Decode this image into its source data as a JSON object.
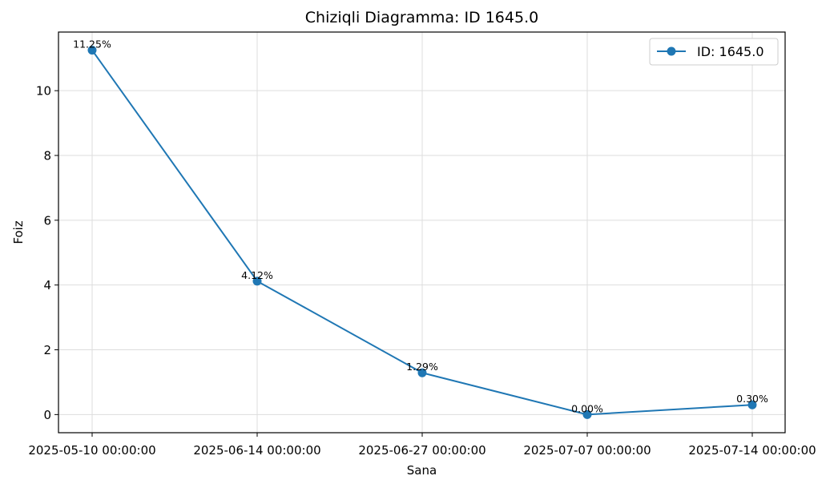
{
  "chart_data": {
    "type": "line",
    "title": "Chiziqli Diagramma: ID 1645.0",
    "xlabel": "Sana",
    "ylabel": "Foiz",
    "categories": [
      "2025-05-10 00:00:00",
      "2025-06-14 00:00:00",
      "2025-06-27 00:00:00",
      "2025-07-07 00:00:00",
      "2025-07-14 00:00:00"
    ],
    "series": [
      {
        "name": "ID: 1645.0",
        "values": [
          11.25,
          4.12,
          1.29,
          0.0,
          0.3
        ],
        "color": "#1f77b4"
      }
    ],
    "data_labels": [
      "11.25%",
      "4.12%",
      "1.29%",
      "0.00%",
      "0.30%"
    ],
    "ylim": [
      -0.56,
      11.81
    ],
    "yticks": [
      0,
      2,
      4,
      6,
      8,
      10
    ],
    "grid": true,
    "legend": "top-right"
  }
}
